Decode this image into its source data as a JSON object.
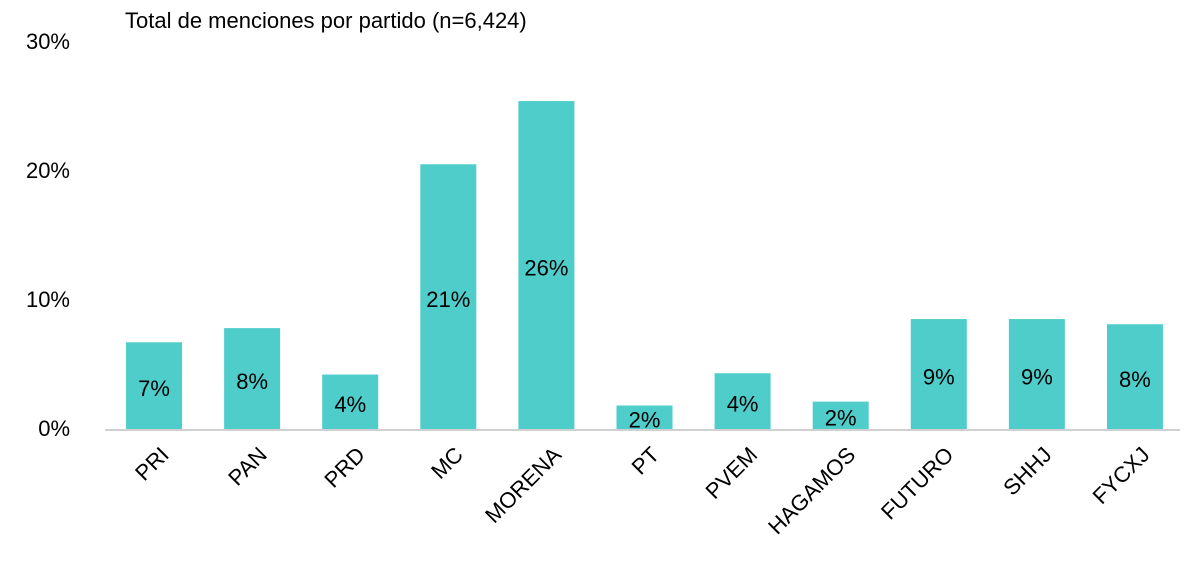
{
  "chart_data": {
    "type": "bar",
    "title": "Total de menciones por partido (n=6,424)",
    "categories": [
      "PRI",
      "PAN",
      "PRD",
      "MC",
      "MORENA",
      "PT",
      "PVEM",
      "HAGAMOS",
      "FUTURO",
      "SHHJ",
      "FYCXJ"
    ],
    "values": [
      6.8,
      7.9,
      4.3,
      20.6,
      25.5,
      1.9,
      4.4,
      2.2,
      8.6,
      8.6,
      8.2
    ],
    "value_labels": [
      "7%",
      "8%",
      "4%",
      "21%",
      "26%",
      "2%",
      "4%",
      "2%",
      "9%",
      "9%",
      "8%"
    ],
    "color": "#4ecdcb",
    "ylim": [
      0,
      30
    ],
    "yticks": [
      {
        "value": 0,
        "label": "0%"
      },
      {
        "value": 10,
        "label": "10%"
      },
      {
        "value": 20,
        "label": "20%"
      },
      {
        "value": 30,
        "label": "30%"
      }
    ],
    "grid": false
  }
}
